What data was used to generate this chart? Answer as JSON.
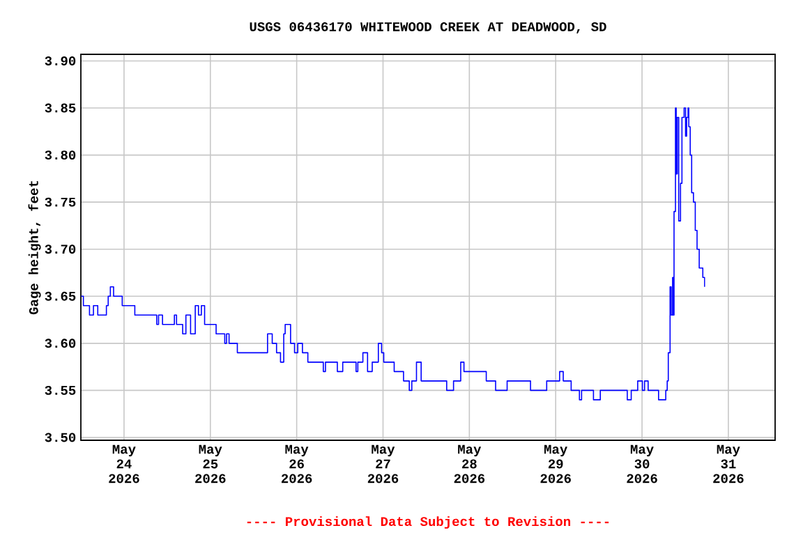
{
  "chart_data": {
    "type": "step",
    "title": "USGS 06436170 WHITEWOOD CREEK AT DEADWOOD, SD",
    "ylabel": "Gage height, feet",
    "annotations": [
      "---- Provisional Data Subject to Revision ----"
    ],
    "x": [
      "2026-05-23T12:06",
      "2026-05-23T12:42",
      "2026-05-23T14:24",
      "2026-05-23T15:30",
      "2026-05-23T16:42",
      "2026-05-23T19:06",
      "2026-05-23T19:36",
      "2026-05-23T20:12",
      "2026-05-23T21:06",
      "2026-05-23T23:30",
      "2026-05-24T03:00",
      "2026-05-24T09:06",
      "2026-05-24T09:36",
      "2026-05-24T10:42",
      "2026-05-24T14:00",
      "2026-05-24T14:36",
      "2026-05-24T16:18",
      "2026-05-24T17:12",
      "2026-05-24T18:30",
      "2026-05-24T19:48",
      "2026-05-24T20:42",
      "2026-05-24T21:30",
      "2026-05-24T22:24",
      "2026-05-25T01:36",
      "2026-05-25T04:00",
      "2026-05-25T04:30",
      "2026-05-25T05:12",
      "2026-05-25T07:30",
      "2026-05-25T15:54",
      "2026-05-25T17:12",
      "2026-05-25T18:24",
      "2026-05-25T19:30",
      "2026-05-25T20:24",
      "2026-05-25T20:48",
      "2026-05-25T22:18",
      "2026-05-25T23:24",
      "2026-05-26T00:18",
      "2026-05-26T01:36",
      "2026-05-26T03:06",
      "2026-05-26T07:24",
      "2026-05-26T08:00",
      "2026-05-26T11:18",
      "2026-05-26T12:48",
      "2026-05-26T16:30",
      "2026-05-26T17:00",
      "2026-05-26T18:24",
      "2026-05-26T19:42",
      "2026-05-26T21:00",
      "2026-05-26T22:42",
      "2026-05-26T23:36",
      "2026-05-27T00:12",
      "2026-05-27T03:06",
      "2026-05-27T05:42",
      "2026-05-27T07:18",
      "2026-05-27T08:00",
      "2026-05-27T09:18",
      "2026-05-27T10:36",
      "2026-05-27T17:42",
      "2026-05-27T19:36",
      "2026-05-27T21:36",
      "2026-05-27T22:30",
      "2026-05-28T04:42",
      "2026-05-28T07:18",
      "2026-05-28T10:30",
      "2026-05-28T17:00",
      "2026-05-28T21:30",
      "2026-05-29T01:06",
      "2026-05-29T02:06",
      "2026-05-29T04:18",
      "2026-05-29T06:36",
      "2026-05-29T07:12",
      "2026-05-29T10:30",
      "2026-05-29T12:24",
      "2026-05-29T19:54",
      "2026-05-29T21:00",
      "2026-05-29T22:48",
      "2026-05-30T00:06",
      "2026-05-30T00:42",
      "2026-05-30T01:42",
      "2026-05-30T04:36",
      "2026-05-30T06:36",
      "2026-05-30T07:00",
      "2026-05-30T07:18",
      "2026-05-30T07:48",
      "2026-05-30T08:06",
      "2026-05-30T08:30",
      "2026-05-30T08:42",
      "2026-05-30T08:54",
      "2026-05-30T09:18",
      "2026-05-30T09:30",
      "2026-05-30T09:48",
      "2026-05-30T10:12",
      "2026-05-30T10:42",
      "2026-05-30T11:06",
      "2026-05-30T11:42",
      "2026-05-30T12:06",
      "2026-05-30T12:24",
      "2026-05-30T12:48",
      "2026-05-30T13:00",
      "2026-05-30T13:24",
      "2026-05-30T13:48",
      "2026-05-30T14:18",
      "2026-05-30T14:48",
      "2026-05-30T15:18",
      "2026-05-30T15:54",
      "2026-05-30T16:24",
      "2026-05-30T16:54",
      "2026-05-30T17:24"
    ],
    "series": [
      {
        "color": "#0000ff",
        "values": [
          3.65,
          3.64,
          3.63,
          3.64,
          3.63,
          3.64,
          3.65,
          3.66,
          3.65,
          3.64,
          3.63,
          3.62,
          3.63,
          3.62,
          3.63,
          3.62,
          3.61,
          3.63,
          3.61,
          3.64,
          3.63,
          3.64,
          3.62,
          3.61,
          3.6,
          3.61,
          3.6,
          3.59,
          3.61,
          3.6,
          3.59,
          3.58,
          3.61,
          3.62,
          3.6,
          3.59,
          3.6,
          3.59,
          3.58,
          3.57,
          3.58,
          3.57,
          3.58,
          3.57,
          3.58,
          3.59,
          3.57,
          3.58,
          3.6,
          3.59,
          3.58,
          3.57,
          3.56,
          3.55,
          3.56,
          3.58,
          3.56,
          3.55,
          3.56,
          3.58,
          3.57,
          3.56,
          3.55,
          3.56,
          3.55,
          3.56,
          3.57,
          3.56,
          3.55,
          3.54,
          3.55,
          3.54,
          3.55,
          3.54,
          3.55,
          3.56,
          3.55,
          3.56,
          3.55,
          3.54,
          3.55,
          3.56,
          3.59,
          3.66,
          3.63,
          3.67,
          3.63,
          3.74,
          3.85,
          3.78,
          3.84,
          3.73,
          3.77,
          3.84,
          3.85,
          3.82,
          3.84,
          3.85,
          3.83,
          3.8,
          3.76,
          3.75,
          3.72,
          3.7,
          3.68,
          3.68,
          3.67,
          3.66
        ]
      }
    ],
    "xlim": [
      "2026-05-23T12:00",
      "2026-05-31T13:00"
    ],
    "xticks": [
      {
        "value": "2026-05-24",
        "label": "May 24 2026"
      },
      {
        "value": "2026-05-25",
        "label": "May 25 2026"
      },
      {
        "value": "2026-05-26",
        "label": "May 26 2026"
      },
      {
        "value": "2026-05-27",
        "label": "May 27 2026"
      },
      {
        "value": "2026-05-28",
        "label": "May 28 2026"
      },
      {
        "value": "2026-05-29",
        "label": "May 29 2026"
      },
      {
        "value": "2026-05-30",
        "label": "May 30 2026"
      },
      {
        "value": "2026-05-31",
        "label": "May 31 2026"
      }
    ],
    "ylim": [
      3.497,
      3.907
    ],
    "yticks": [
      {
        "value": 3.5,
        "label": "3.50"
      },
      {
        "value": 3.55,
        "label": "3.55"
      },
      {
        "value": 3.6,
        "label": "3.60"
      },
      {
        "value": 3.65,
        "label": "3.65"
      },
      {
        "value": 3.7,
        "label": "3.70"
      },
      {
        "value": 3.75,
        "label": "3.75"
      },
      {
        "value": 3.8,
        "label": "3.80"
      },
      {
        "value": 3.85,
        "label": "3.85"
      },
      {
        "value": 3.9,
        "label": "3.90"
      }
    ],
    "grid": true,
    "marker": "none",
    "line_style": "solid"
  }
}
